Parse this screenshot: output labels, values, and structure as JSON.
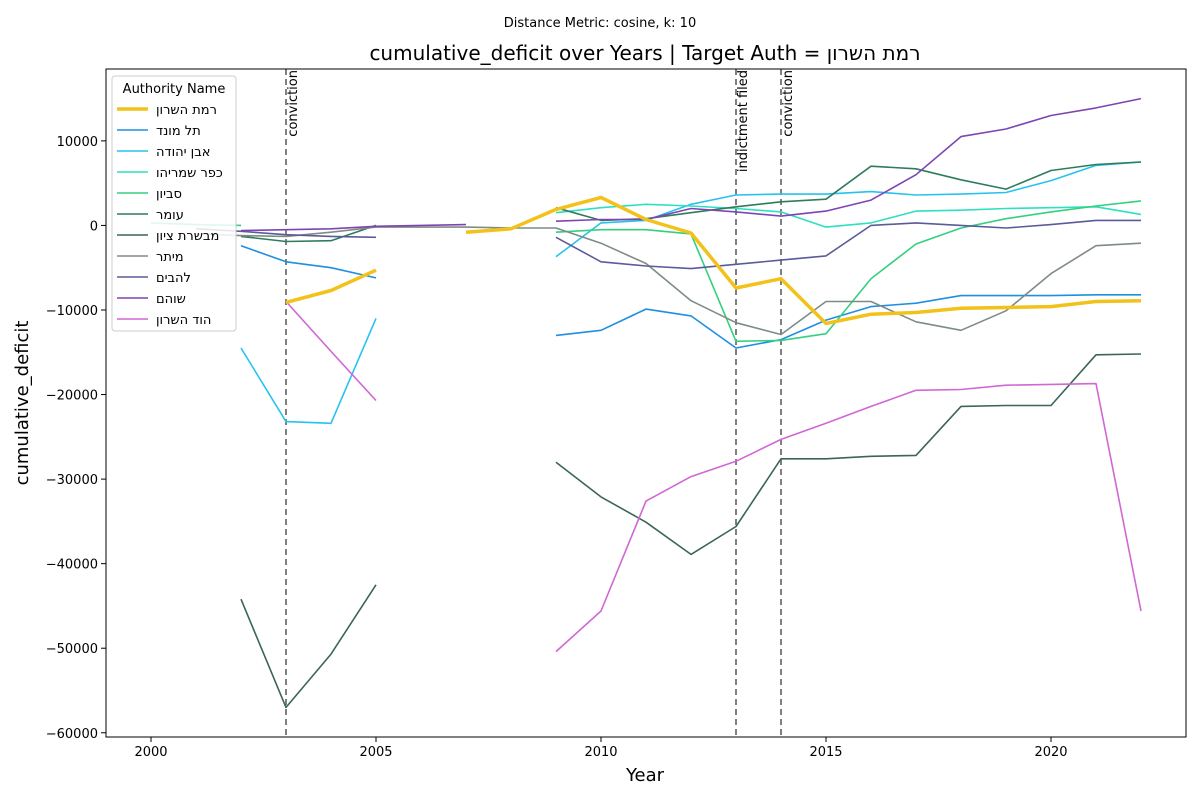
{
  "chart_data": {
    "type": "line",
    "suptitle": "Distance Metric: cosine, k: 10",
    "title": "cumulative_deficit over Years | Target Auth = רמת השרון",
    "xlabel": "Year",
    "ylabel": "cumulative_deficit",
    "xlim": [
      1999,
      2023
    ],
    "ylim": [
      -60500,
      18500
    ],
    "xticks": [
      2000,
      2005,
      2010,
      2015,
      2020
    ],
    "yticks": [
      -60000,
      -50000,
      -40000,
      -30000,
      -20000,
      -10000,
      0,
      10000
    ],
    "ytick_labels": [
      "−60000",
      "−50000",
      "−40000",
      "−30000",
      "−20000",
      "−10000",
      "0",
      "10000"
    ],
    "grid": false,
    "legend": {
      "title": "Authority Name",
      "placement": "top-left"
    },
    "events": [
      {
        "year": 2003,
        "label": "conviction"
      },
      {
        "year": 2013,
        "label": "indictment filed"
      },
      {
        "year": 2014,
        "label": "conviction"
      }
    ],
    "series": [
      {
        "name": "רמת השרון",
        "color": "#f2c21b",
        "width": 3.5,
        "target": true,
        "points": [
          [
            2003,
            -9100
          ],
          [
            2004,
            -7700
          ],
          [
            2005,
            -5300
          ],
          null,
          [
            2007,
            -800
          ],
          [
            2008,
            -400
          ],
          [
            2009,
            1900
          ],
          [
            2010,
            3300
          ],
          [
            2011,
            700
          ],
          [
            2012,
            -900
          ],
          [
            2013,
            -7400
          ],
          [
            2014,
            -6300
          ],
          [
            2015,
            -11600
          ],
          [
            2016,
            -10500
          ],
          [
            2017,
            -10300
          ],
          [
            2018,
            -9800
          ],
          [
            2019,
            -9700
          ],
          [
            2020,
            -9600
          ],
          [
            2021,
            -9000
          ],
          [
            2022,
            -8900
          ]
        ]
      },
      {
        "name": "תל מונד",
        "color": "#1f8fe0",
        "width": 1.6,
        "points": [
          [
            2002,
            -2400
          ],
          [
            2003,
            -4300
          ],
          [
            2004,
            -5000
          ],
          [
            2005,
            -6200
          ],
          null,
          [
            2009,
            -13000
          ],
          [
            2010,
            -12400
          ],
          [
            2011,
            -9900
          ],
          [
            2012,
            -10700
          ],
          [
            2013,
            -14500
          ],
          [
            2014,
            -13500
          ],
          [
            2015,
            -11200
          ],
          [
            2016,
            -9600
          ],
          [
            2017,
            -9200
          ],
          [
            2018,
            -8300
          ],
          [
            2019,
            -8300
          ],
          [
            2020,
            -8300
          ],
          [
            2021,
            -8200
          ],
          [
            2022,
            -8200
          ]
        ]
      },
      {
        "name": "אבן יהודה",
        "color": "#27c3ef",
        "width": 1.6,
        "points": [
          [
            2002,
            -14500
          ],
          [
            2003,
            -23200
          ],
          [
            2004,
            -23400
          ],
          [
            2005,
            -11000
          ],
          null,
          [
            2009,
            -3700
          ],
          [
            2010,
            300
          ],
          [
            2011,
            600
          ],
          [
            2012,
            2500
          ],
          [
            2013,
            3600
          ],
          [
            2014,
            3700
          ],
          [
            2015,
            3700
          ],
          [
            2016,
            4000
          ],
          [
            2017,
            3600
          ],
          [
            2018,
            3700
          ],
          [
            2019,
            3900
          ],
          [
            2020,
            5300
          ],
          [
            2021,
            7100
          ],
          [
            2022,
            7500
          ]
        ]
      },
      {
        "name": "כפר שמריהו",
        "color": "#2ee0bf",
        "width": 1.6,
        "points": [
          [
            2009,
            1500
          ],
          [
            2010,
            2100
          ],
          [
            2011,
            2500
          ],
          [
            2012,
            2300
          ],
          [
            2013,
            2000
          ],
          [
            2014,
            1600
          ],
          [
            2015,
            -200
          ],
          [
            2016,
            300
          ],
          [
            2017,
            1700
          ],
          [
            2018,
            1800
          ],
          [
            2019,
            2000
          ],
          [
            2020,
            2100
          ],
          [
            2021,
            2200
          ],
          [
            2022,
            1300
          ]
        ]
      },
      {
        "name": "סביון",
        "color": "#34d07f",
        "width": 1.6,
        "points": [
          [
            2000,
            300
          ],
          [
            2001,
            100
          ],
          [
            2002,
            0
          ],
          null,
          [
            2009,
            -800
          ],
          [
            2010,
            -500
          ],
          [
            2011,
            -500
          ],
          [
            2012,
            -1000
          ],
          [
            2013,
            -13700
          ],
          [
            2014,
            -13600
          ],
          [
            2015,
            -12800
          ],
          [
            2016,
            -6300
          ],
          [
            2017,
            -2200
          ],
          [
            2018,
            -300
          ],
          [
            2019,
            800
          ],
          [
            2020,
            1600
          ],
          [
            2021,
            2300
          ],
          [
            2022,
            2900
          ]
        ]
      },
      {
        "name": "עומר",
        "color": "#2e7d5a",
        "width": 1.6,
        "points": [
          [
            2002,
            -1300
          ],
          [
            2003,
            -1900
          ],
          [
            2004,
            -1800
          ],
          [
            2005,
            0
          ],
          null,
          [
            2009,
            2100
          ],
          [
            2010,
            600
          ],
          [
            2011,
            800
          ],
          [
            2012,
            1500
          ],
          [
            2013,
            2200
          ],
          [
            2014,
            2800
          ],
          [
            2015,
            3100
          ],
          [
            2016,
            7000
          ],
          [
            2017,
            6700
          ],
          [
            2018,
            5400
          ],
          [
            2019,
            4300
          ],
          [
            2020,
            6500
          ],
          [
            2021,
            7200
          ],
          [
            2022,
            7500
          ]
        ]
      },
      {
        "name": "מבשרת ציון",
        "color": "#3b6656",
        "width": 1.6,
        "points": [
          [
            2002,
            -44200
          ],
          [
            2003,
            -57000
          ],
          [
            2004,
            -50700
          ],
          [
            2005,
            -42500
          ],
          null,
          [
            2009,
            -28000
          ],
          [
            2010,
            -32100
          ],
          [
            2011,
            -35100
          ],
          [
            2012,
            -38900
          ],
          [
            2013,
            -35600
          ],
          [
            2014,
            -27600
          ],
          [
            2015,
            -27600
          ],
          [
            2016,
            -27300
          ],
          [
            2017,
            -27200
          ],
          [
            2018,
            -21400
          ],
          [
            2019,
            -21300
          ],
          [
            2020,
            -21300
          ],
          [
            2021,
            -15300
          ],
          [
            2022,
            -15200
          ]
        ]
      },
      {
        "name": "מיתר",
        "color": "#7f8c86",
        "width": 1.6,
        "points": [
          [
            2001,
            -1000
          ],
          [
            2002,
            -1200
          ],
          [
            2003,
            -1300
          ],
          [
            2004,
            -800
          ],
          [
            2005,
            -200
          ],
          [
            2006,
            -200
          ],
          [
            2007,
            -200
          ],
          [
            2008,
            -300
          ],
          [
            2009,
            -300
          ],
          [
            2010,
            -2100
          ],
          [
            2011,
            -4500
          ],
          [
            2012,
            -8900
          ],
          [
            2013,
            -11500
          ],
          [
            2014,
            -12900
          ],
          [
            2015,
            -9000
          ],
          [
            2016,
            -9000
          ],
          [
            2017,
            -11400
          ],
          [
            2018,
            -12400
          ],
          [
            2019,
            -10100
          ],
          [
            2020,
            -5700
          ],
          [
            2021,
            -2400
          ],
          [
            2022,
            -2100
          ]
        ]
      },
      {
        "name": "להבים",
        "color": "#5b5b9a",
        "width": 1.6,
        "points": [
          [
            2001,
            -400
          ],
          [
            2002,
            -700
          ],
          [
            2003,
            -1100
          ],
          [
            2004,
            -1300
          ],
          [
            2005,
            -1400
          ],
          null,
          [
            2009,
            -1400
          ],
          [
            2010,
            -4300
          ],
          [
            2011,
            -4800
          ],
          [
            2012,
            -5100
          ],
          [
            2013,
            -4600
          ],
          [
            2014,
            -4100
          ],
          [
            2015,
            -3600
          ],
          [
            2016,
            0
          ],
          [
            2017,
            300
          ],
          [
            2018,
            0
          ],
          [
            2019,
            -300
          ],
          [
            2020,
            100
          ],
          [
            2021,
            600
          ],
          [
            2022,
            600
          ]
        ]
      },
      {
        "name": "שוהם",
        "color": "#7e44b4",
        "width": 1.6,
        "points": [
          [
            2002,
            -600
          ],
          [
            2003,
            -500
          ],
          [
            2004,
            -400
          ],
          [
            2005,
            -100
          ],
          [
            2006,
            0
          ],
          [
            2007,
            100
          ],
          null,
          [
            2009,
            500
          ],
          [
            2010,
            700
          ],
          [
            2011,
            700
          ],
          [
            2012,
            2000
          ],
          [
            2013,
            1600
          ],
          [
            2014,
            1100
          ],
          [
            2015,
            1700
          ],
          [
            2016,
            3000
          ],
          [
            2017,
            6000
          ],
          [
            2018,
            10500
          ],
          [
            2019,
            11400
          ],
          [
            2020,
            13000
          ],
          [
            2021,
            13900
          ],
          [
            2022,
            15000
          ]
        ]
      },
      {
        "name": "הוד השרון",
        "color": "#d067d4",
        "width": 1.6,
        "points": [
          [
            2003,
            -9000
          ],
          [
            2004,
            -14900
          ],
          [
            2005,
            -20700
          ],
          null,
          [
            2009,
            -50400
          ],
          [
            2010,
            -45600
          ],
          [
            2011,
            -32600
          ],
          [
            2012,
            -29700
          ],
          [
            2013,
            -27900
          ],
          [
            2014,
            -25300
          ],
          [
            2015,
            -23400
          ],
          [
            2016,
            -21400
          ],
          [
            2017,
            -19500
          ],
          [
            2018,
            -19400
          ],
          [
            2019,
            -18900
          ],
          [
            2020,
            -18800
          ],
          [
            2021,
            -18700
          ],
          [
            2022,
            -45600
          ]
        ]
      }
    ]
  }
}
